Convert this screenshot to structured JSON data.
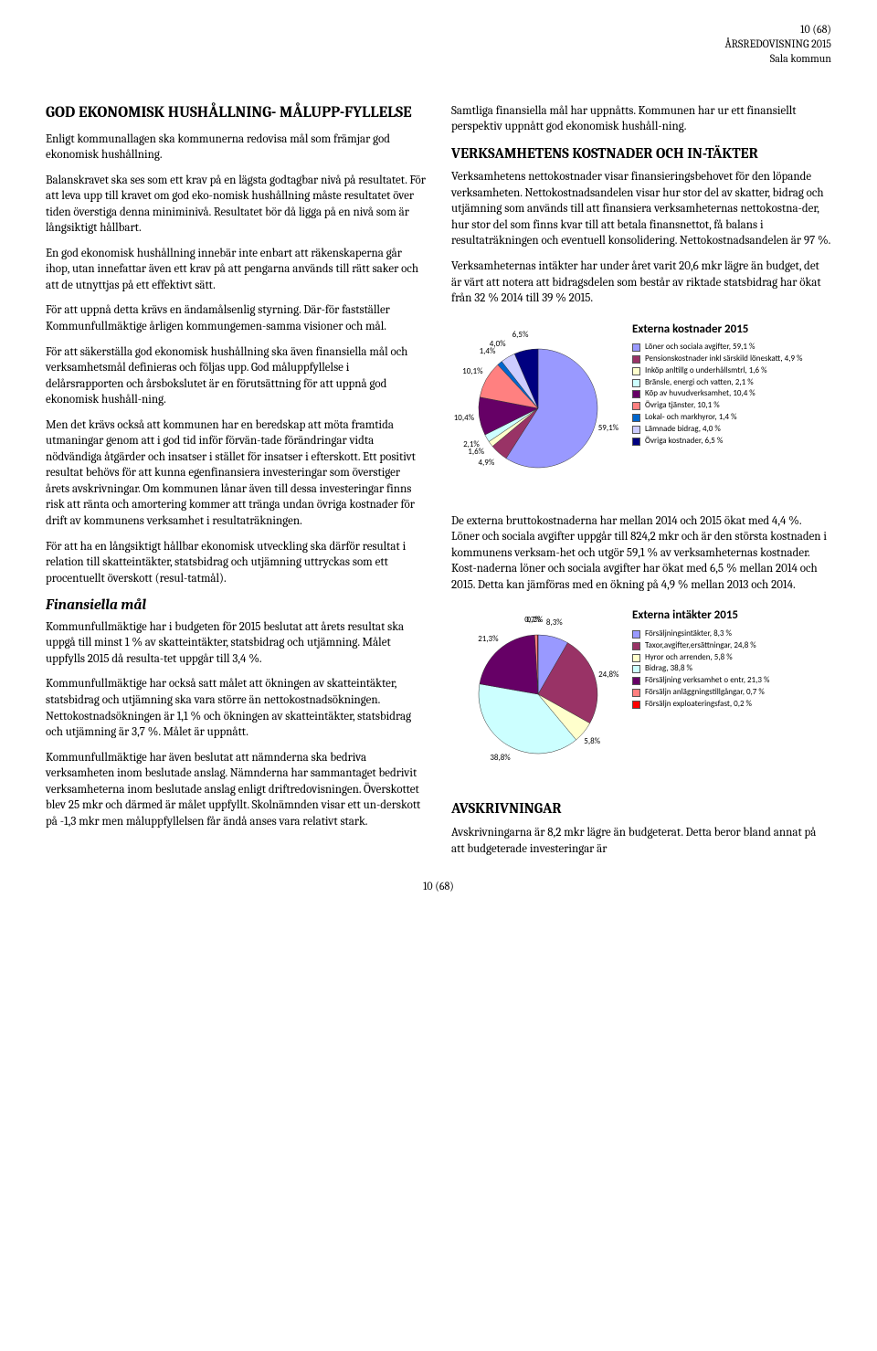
{
  "header": {
    "page_of": "10 (68)",
    "doc_title": "ÅRSREDOVISNING 2015",
    "org": "Sala kommun"
  },
  "left": {
    "h1": "GOD EKONOMISK HUSHÅLLNING- MÅLUPP-FYLLELSE",
    "p1": "Enligt kommunallagen ska kommunerna redovisa mål som främjar god ekonomisk hushållning.",
    "p2": "Balanskravet ska ses som ett krav på en lägsta godtagbar nivå på resultatet. För att leva upp till kravet om god eko-nomisk hushållning måste resultatet över tiden överstiga denna miniminivå. Resultatet bör då ligga på en nivå som är långsiktigt hållbart.",
    "p3": "En god ekonomisk hushållning innebär inte enbart att räkenskaperna går ihop, utan innefattar även ett krav på att pengarna används till rätt saker och att de utnyttjas på ett effektivt sätt.",
    "p4": "För att uppnå detta krävs en ändamålsenlig styrning. Där-för fastställer Kommunfullmäktige årligen kommungemen-samma visioner och mål.",
    "p5": "För att säkerställa god ekonomisk hushållning ska även finansiella mål och verksamhetsmål definieras och följas upp. God måluppfyllelse i delårsrapporten och årsbokslutet är en förutsättning för att uppnå god ekonomisk hushåll-ning.",
    "p6": "Men det krävs också att kommunen har en beredskap att möta framtida utmaningar genom att i god tid inför förvän-tade förändringar vidta nödvändiga åtgärder och insatser i stället för insatser i efterskott. Ett positivt resultat behövs för att kunna egenfinansiera investeringar som överstiger årets avskrivningar. Om kommunen lånar även till dessa investeringar finns risk att ränta och amortering kommer att tränga undan övriga kostnader för drift av kommunens verksamhet i resultaträkningen.",
    "p7": "För att ha en långsiktigt hållbar ekonomisk utveckling ska därför resultat i relation till skatteintäkter, statsbidrag och utjämning uttryckas som ett procentuellt överskott (resul-tatmål).",
    "h3": "Finansiella mål",
    "p8": "Kommunfullmäktige har i budgeten för 2015 beslutat att årets resultat ska uppgå till minst 1 % av skatteintäkter, statsbidrag och utjämning. Målet uppfylls 2015 då resulta-tet uppgår till 3,4 %.",
    "p9": "Kommunfullmäktige har också satt målet att ökningen av skatteintäkter, statsbidrag och utjämning ska vara större än nettokostnadsökningen. Nettokostnadsökningen är 1,1 % och ökningen av skatteintäkter, statsbidrag och utjämning är 3,7 %. Målet är uppnått.",
    "p10": "Kommunfullmäktige har även beslutat att nämnderna ska bedriva verksamheten inom beslutade anslag. Nämnderna har sammantaget bedrivit verksamheterna inom beslutade anslag enligt driftredovisningen. Överskottet blev 25 mkr och därmed är målet uppfyllt. Skolnämnden visar ett un-derskott på -1,3 mkr men måluppfyllelsen får ändå anses vara relativt stark."
  },
  "right": {
    "p1": "Samtliga finansiella mål har uppnåtts. Kommunen har ur ett finansiellt perspektiv uppnått god ekonomisk hushåll-ning.",
    "h2a": "VERKSAMHETENS KOSTNADER OCH IN-TÄKTER",
    "p2": "Verksamhetens nettokostnader visar finansieringsbehovet för den löpande verksamheten. Nettokostnadsandelen visar hur stor del av skatter, bidrag och utjämning som används till att finansiera verksamheternas nettokostna-der, hur stor del som finns kvar till att betala finansnettot, få balans i resultaträkningen och eventuell konsolidering. Nettokostnadsandelen är 97 %.",
    "p3": "Verksamheternas intäkter har under året varit 20,6 mkr lägre än budget, det är värt att notera att bidragsdelen som består av riktade statsbidrag har ökat från 32 % 2014 till 39 % 2015.",
    "p4": "De externa bruttokostnaderna har mellan 2014 och 2015 ökat med 4,4 %. Löner och sociala avgifter uppgår till 824,2 mkr och är den största kostnaden i kommunens verksam-het och utgör 59,1 % av verksamheternas kostnader. Kost-naderna löner och sociala avgifter har ökat med 6,5 % mellan 2014 och 2015. Detta kan jämföras med en ökning på 4,9 % mellan 2013 och 2014.",
    "h2b": "AVSKRIVNINGAR",
    "p5": "Avskrivningarna är 8,2 mkr lägre än budgeterat. Detta beror bland annat på att budgeterade investeringar är"
  },
  "chart1": {
    "title": "Externa kostnader 2015",
    "slices": [
      {
        "label": "Löner och sociala avgifter, 59,1 %",
        "v": 59.1,
        "color": "#9999ff",
        "pl": "59,1%"
      },
      {
        "label": "Pensionskostnader inkl särskild löneskatt, 4,9 %",
        "v": 4.9,
        "color": "#993366",
        "pl": "4,9%"
      },
      {
        "label": "Inköp anltillg o underhållsmtrl, 1,6 %",
        "v": 1.6,
        "color": "#ffffcc",
        "pl": "1,6%"
      },
      {
        "label": "Bränsle, energi och vatten, 2,1 %",
        "v": 2.1,
        "color": "#ccffff",
        "pl": "2,1%"
      },
      {
        "label": "Köp av huvudverksamhet, 10,4 %",
        "v": 10.4,
        "color": "#660066",
        "pl": "10,4%"
      },
      {
        "label": "Övriga tjänster, 10,1 %",
        "v": 10.1,
        "color": "#ff8080",
        "pl": "10,1%"
      },
      {
        "label": "Lokal- och markhyror, 1,4 %",
        "v": 1.4,
        "color": "#0066cc",
        "pl": "1,4%"
      },
      {
        "label": "Lämnade bidrag, 4,0 %",
        "v": 4.0,
        "color": "#ccccff",
        "pl": "4,0%"
      },
      {
        "label": "Övriga kostnader, 6,5 %",
        "v": 6.5,
        "color": "#000080",
        "pl": "6,5%"
      }
    ]
  },
  "chart2": {
    "title": "Externa intäkter 2015",
    "slices": [
      {
        "label": "Försäljningsintäkter, 8,3 %",
        "v": 8.3,
        "color": "#9999ff",
        "pl": "8,3%"
      },
      {
        "label": "Taxor,avgifter,ersättningar, 24,8 %",
        "v": 24.8,
        "color": "#993366",
        "pl": "24,8%"
      },
      {
        "label": "Hyror och arrenden, 5,8 %",
        "v": 5.8,
        "color": "#ffffcc",
        "pl": "5,8%"
      },
      {
        "label": "Bidrag, 38,8 %",
        "v": 38.8,
        "color": "#ccffff",
        "pl": "38,8%"
      },
      {
        "label": "Försäljning verksamhet o entr, 21,3 %",
        "v": 21.3,
        "color": "#660066",
        "pl": "21,3%"
      },
      {
        "label": "Försäljn anläggningstillgångar, 0,7 %",
        "v": 0.7,
        "color": "#ff8080",
        "pl": "0,7%"
      },
      {
        "label": "Försäljn exploateringsfast, 0,2 %",
        "v": 0.2,
        "color": "#ff0000",
        "pl": "0,2%"
      }
    ]
  },
  "footer": "10 (68)"
}
